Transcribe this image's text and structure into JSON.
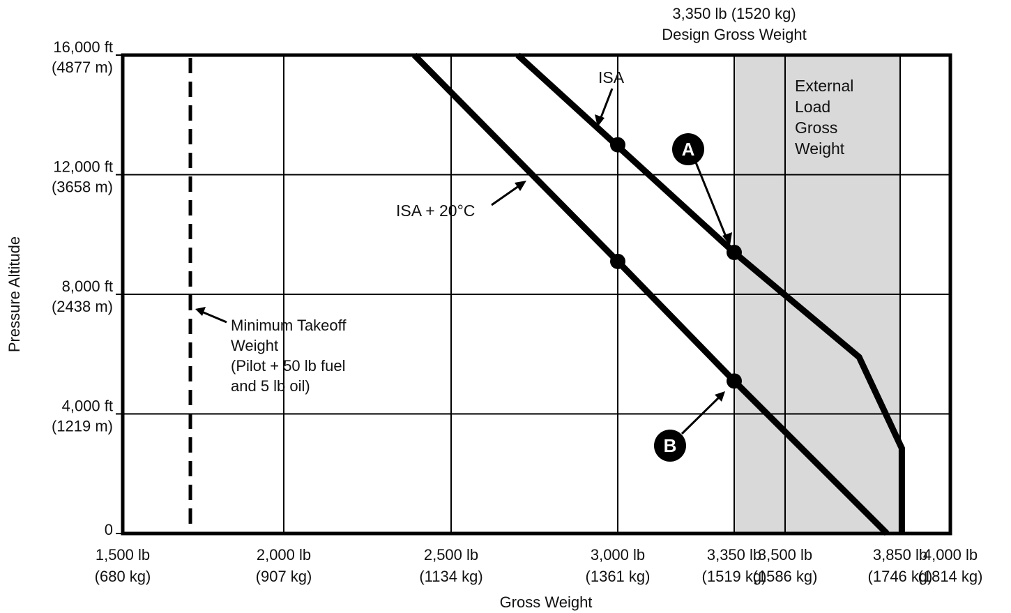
{
  "chart_data": {
    "type": "line",
    "title": "",
    "xlabel": "Gross Weight",
    "ylabel": "Pressure Altitude",
    "xlim": [
      1500,
      4000
    ],
    "ylim": [
      0,
      16000
    ],
    "x_ticks": [
      {
        "value": 1500,
        "lb": "1,500 lb",
        "kg": "(680 kg)"
      },
      {
        "value": 2000,
        "lb": "2,000 lb",
        "kg": "(907 kg)"
      },
      {
        "value": 2500,
        "lb": "2,500 lb",
        "kg": "(1134 kg)"
      },
      {
        "value": 3000,
        "lb": "3,000 lb",
        "kg": "(1361 kg)"
      },
      {
        "value": 3350,
        "lb": "3,350 lb",
        "kg": "(1519 kg)"
      },
      {
        "value": 3500,
        "lb": "3,500 lb",
        "kg": "(1586 kg)"
      },
      {
        "value": 3850,
        "lb": "3,850 lb",
        "kg": "(1746 kg)"
      },
      {
        "value": 4000,
        "lb": "4,000 lb",
        "kg": "(1814 kg)"
      }
    ],
    "y_ticks": [
      {
        "value": 0,
        "ft": "0",
        "m": ""
      },
      {
        "value": 4000,
        "ft": "4,000 ft",
        "m": "(1219 m)"
      },
      {
        "value": 8000,
        "ft": "8,000 ft",
        "m": "(2438 m)"
      },
      {
        "value": 12000,
        "ft": "12,000 ft",
        "m": "(3658 m)"
      },
      {
        "value": 16000,
        "ft": "16,000 ft",
        "m": "(4877 m)"
      }
    ],
    "series": [
      {
        "name": "ISA",
        "x": [
          2700,
          3350,
          3725,
          3855,
          3855
        ],
        "y": [
          16000,
          9400,
          5900,
          2850,
          0
        ]
      },
      {
        "name": "ISA + 20°C",
        "x": [
          2390,
          3000,
          3350,
          3810
        ],
        "y": [
          16000,
          9100,
          5100,
          0
        ]
      }
    ],
    "markers": [
      {
        "series": "ISA",
        "x": 3000,
        "y": 13000
      },
      {
        "series": "ISA",
        "x": 3350,
        "y": 9400
      },
      {
        "series": "ISA + 20°C",
        "x": 3000,
        "y": 9100
      },
      {
        "series": "ISA + 20°C",
        "x": 3350,
        "y": 5100
      }
    ],
    "min_takeoff_weight": 1710,
    "shaded_region": {
      "x_from": 3350,
      "x_to": 3850,
      "color": "#d9d9d9"
    },
    "annotations": {
      "design_gross_weight": [
        "3,350 lb (1520 kg)",
        "Design Gross Weight"
      ],
      "external_load": [
        "External",
        "Load",
        "Gross",
        "Weight"
      ],
      "isa_label": "ISA",
      "isa20_label": "ISA + 20°C",
      "min_takeoff": [
        "Minimum Takeoff",
        "Weight",
        "(Pilot + 50 lb fuel",
        "and 5 lb oil)"
      ],
      "point_a": "A",
      "point_b": "B"
    },
    "grid": true
  }
}
